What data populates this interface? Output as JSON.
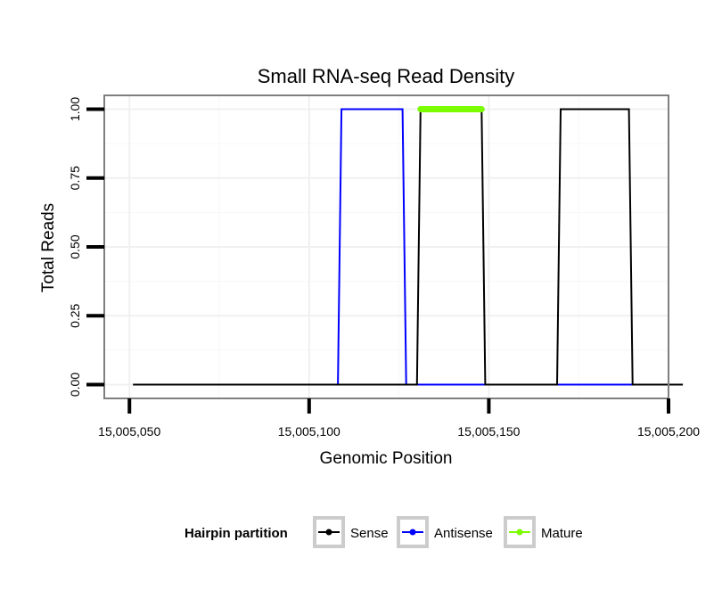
{
  "chart_data": {
    "type": "line",
    "title": "Small RNA-seq Read Density",
    "xlabel": "Genomic Position",
    "ylabel": "Total Reads",
    "xlim": [
      15005043,
      15005200
    ],
    "ylim": [
      -0.05,
      1.05
    ],
    "x_ticks": [
      15005050,
      15005100,
      15005150,
      15005200
    ],
    "x_tick_labels": [
      "15,005,050",
      "15,005,100",
      "15,005,150",
      "15,005,200"
    ],
    "y_ticks": [
      0,
      0.25,
      0.5,
      0.75,
      1.0
    ],
    "y_tick_labels": [
      "0.00",
      "0.25",
      "0.50",
      "0.75",
      "1.00"
    ],
    "grid": true,
    "legend_title": "Hairpin partition",
    "legend_position": "bottom",
    "series": [
      {
        "name": "Sense",
        "color": "#000000",
        "x": [
          15005051,
          15005130,
          15005131,
          15005148,
          15005149,
          15005169,
          15005170,
          15005189,
          15005190,
          15005204
        ],
        "values": [
          0,
          0,
          1,
          1,
          0,
          0,
          1,
          1,
          0,
          0
        ]
      },
      {
        "name": "Antisense",
        "color": "#0000ff",
        "x": [
          15005051,
          15005108,
          15005109,
          15005126,
          15005127,
          15005190
        ],
        "values": [
          0,
          0,
          1,
          1,
          0,
          0
        ]
      },
      {
        "name": "Mature",
        "color": "#7cfc00",
        "x": [
          15005131,
          15005148
        ],
        "values": [
          1,
          1
        ]
      }
    ]
  }
}
